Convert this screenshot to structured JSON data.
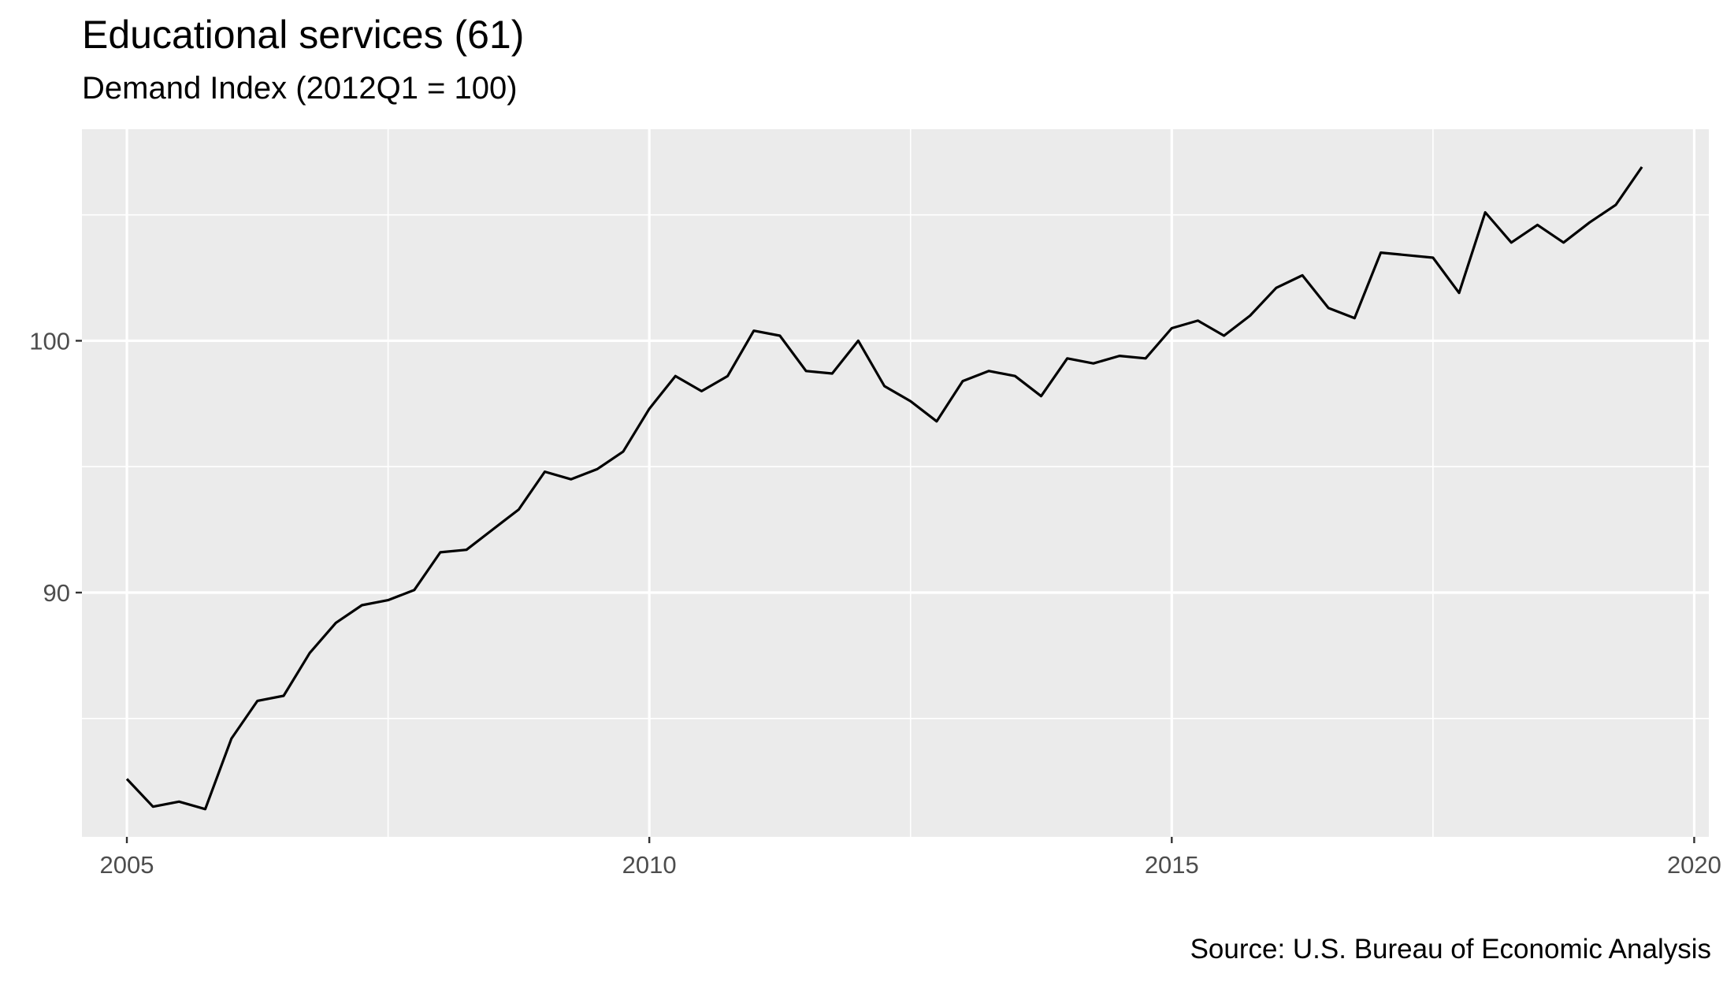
{
  "chart_data": {
    "type": "line",
    "title": "Educational services (61)",
    "subtitle": "Demand Index (2012Q1 = 100)",
    "caption": "Source: U.S. Bureau of Economic Analysis",
    "xlabel": "",
    "ylabel": "",
    "xlim": [
      2004.57,
      2020.14
    ],
    "ylim": [
      80.3,
      108.4
    ],
    "x_ticks": [
      2005,
      2010,
      2015,
      2020
    ],
    "x_tick_labels": [
      "2005",
      "2010",
      "2015",
      "2020"
    ],
    "y_ticks": [
      90,
      100
    ],
    "y_tick_labels": [
      "90",
      "100"
    ],
    "grid": true,
    "legend": "none",
    "colors": {
      "panel": "#ebebeb",
      "grid": "#ffffff",
      "line": "#000000",
      "tick_text": "#4d4d4d"
    },
    "series": [
      {
        "x": [
          "2005Q1",
          "2005Q2",
          "2005Q3",
          "2005Q4",
          "2006Q1",
          "2006Q2",
          "2006Q3",
          "2006Q4",
          "2007Q1",
          "2007Q2",
          "2007Q3",
          "2007Q4",
          "2008Q1",
          "2008Q2",
          "2008Q3",
          "2008Q4",
          "2009Q1",
          "2009Q2",
          "2009Q3",
          "2009Q4",
          "2010Q1",
          "2010Q2",
          "2010Q3",
          "2010Q4",
          "2011Q1",
          "2011Q2",
          "2011Q3",
          "2011Q4",
          "2012Q1",
          "2012Q2",
          "2012Q3",
          "2012Q4",
          "2013Q1",
          "2013Q2",
          "2013Q3",
          "2013Q4",
          "2014Q1",
          "2014Q2",
          "2014Q3",
          "2014Q4",
          "2015Q1",
          "2015Q2",
          "2015Q3",
          "2015Q4",
          "2016Q1",
          "2016Q2",
          "2016Q3",
          "2016Q4",
          "2017Q1",
          "2017Q2",
          "2017Q3",
          "2017Q4",
          "2018Q1",
          "2018Q2",
          "2018Q3",
          "2018Q4",
          "2019Q1",
          "2019Q2",
          "2019Q3"
        ],
        "values": [
          82.6,
          81.5,
          81.7,
          81.4,
          84.2,
          85.7,
          85.9,
          87.6,
          88.8,
          89.5,
          89.7,
          90.1,
          91.6,
          91.7,
          92.5,
          93.3,
          94.8,
          94.5,
          94.9,
          95.6,
          97.3,
          98.6,
          98.0,
          98.6,
          100.4,
          100.2,
          98.8,
          98.7,
          100.0,
          98.2,
          97.6,
          96.8,
          98.4,
          98.8,
          98.6,
          97.8,
          99.3,
          99.1,
          99.4,
          99.3,
          100.5,
          100.8,
          100.2,
          101.0,
          102.1,
          102.6,
          101.3,
          100.9,
          103.5,
          103.4,
          103.3,
          101.9,
          105.1,
          103.9,
          104.6,
          103.9,
          104.7,
          105.4,
          106.9
        ]
      }
    ]
  }
}
